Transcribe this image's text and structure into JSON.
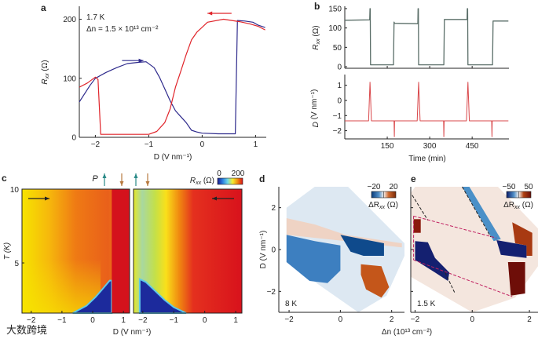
{
  "figure": {
    "watermark": "大数跨境"
  },
  "chart_data": [
    {
      "panel": "a",
      "type": "line",
      "title": "",
      "annotations": [
        "1.7 K",
        "Δn = 1.5 × 10¹³ cm⁻²"
      ],
      "xlabel": "D (V nm⁻¹)",
      "ylabel": {
        "main": "R",
        "sub": "xx",
        "unit": " (Ω)"
      },
      "xlim": [
        -2.3,
        1.2
      ],
      "ylim": [
        0,
        222
      ],
      "xticks": [
        -2,
        -1,
        0,
        1
      ],
      "xtick_labels": [
        "−2",
        "−1",
        "0",
        "1"
      ],
      "yticks": [
        0,
        100,
        200
      ],
      "ytick_labels": [
        "0",
        "100",
        "200"
      ],
      "series": [
        {
          "name": "forward sweep",
          "color": "#2e2a8c",
          "arrow": [
            -1.5,
            -1.1,
            130
          ],
          "x": [
            -2.3,
            -2.1,
            -2.0,
            -1.8,
            -1.6,
            -1.4,
            -1.2,
            -1.05,
            -0.9,
            -0.8,
            -0.7,
            -0.6,
            -0.5,
            -0.4,
            -0.3,
            -0.2,
            -0.1,
            0,
            0.3,
            0.62,
            0.66,
            0.8,
            0.95,
            1.05,
            1.18
          ],
          "y": [
            60,
            88,
            100,
            110,
            118,
            125,
            127,
            128,
            118,
            102,
            82,
            62,
            45,
            35,
            25,
            12,
            9,
            7,
            6,
            6,
            198,
            197,
            195,
            190,
            186
          ]
        },
        {
          "name": "backward sweep",
          "color": "#e0242a",
          "arrow": [
            0.55,
            0.1,
            210
          ],
          "x": [
            -2.3,
            -2.15,
            -2.0,
            -1.95,
            -1.9,
            -1.5,
            -1.0,
            -0.85,
            -0.7,
            -0.6,
            -0.5,
            -0.4,
            -0.3,
            -0.2,
            -0.1,
            0.1,
            0.4,
            0.7,
            0.9,
            1.05,
            1.18
          ],
          "y": [
            85,
            92,
            102,
            98,
            5,
            5,
            5,
            10,
            25,
            48,
            85,
            112,
            140,
            165,
            178,
            195,
            200,
            196,
            192,
            188,
            182
          ]
        }
      ]
    },
    {
      "panel": "b-top",
      "type": "line",
      "ylabel": {
        "main": "R",
        "sub": "xx",
        "unit": " (Ω)"
      },
      "xlim": [
        0,
        580
      ],
      "ylim": [
        0,
        156
      ],
      "xticks": [
        150,
        300,
        450
      ],
      "yticks": [
        0,
        50,
        100,
        150
      ],
      "ytick_labels": [
        "0",
        "50",
        "100",
        "150"
      ],
      "series": [
        {
          "name": "Rxx",
          "color": "#5a6e68",
          "x": [
            0,
            88,
            89,
            90,
            91,
            92,
            170,
            172,
            174,
            176,
            258,
            259,
            260,
            261,
            262,
            348,
            350,
            352,
            354,
            432,
            433,
            434,
            435,
            436,
            437,
            520,
            522,
            524,
            526,
            578
          ],
          "y": [
            120,
            121,
            150,
            150,
            5,
            5,
            5,
            5,
            115,
            112,
            111,
            150,
            150,
            5,
            5,
            5,
            5,
            122,
            122,
            122,
            150,
            150,
            5,
            5,
            5,
            5,
            5,
            118,
            118,
            118
          ]
        }
      ]
    },
    {
      "panel": "b-bottom",
      "type": "line",
      "xlabel": "Time (min)",
      "ylabel": {
        "main": "D",
        "sub": "",
        "unit": " (V nm⁻¹)"
      },
      "xlim": [
        0,
        580
      ],
      "ylim": [
        -2.54,
        1.71
      ],
      "xticks": [
        150,
        300,
        450
      ],
      "xtick_labels": [
        "150",
        "300",
        "450"
      ],
      "yticks": [
        -2,
        -1,
        0,
        1
      ],
      "ytick_labels": [
        "−2",
        "−1",
        "0",
        "1"
      ],
      "series": [
        {
          "name": "D",
          "color": "#d9474a",
          "x": [
            0,
            84,
            89,
            94,
            170,
            174,
            175,
            176,
            180,
            256,
            261,
            266,
            345,
            349,
            350,
            351,
            355,
            430,
            435,
            440,
            515,
            519,
            520,
            521,
            525,
            578
          ],
          "y": [
            -1.35,
            -1.35,
            1.2,
            -1.35,
            -1.35,
            -1.35,
            -2.4,
            -1.35,
            -1.35,
            -1.35,
            1.2,
            -1.35,
            -1.35,
            -1.35,
            -2.4,
            -1.35,
            -1.35,
            -1.35,
            1.2,
            -1.35,
            -1.35,
            -1.35,
            -2.4,
            -1.35,
            -1.35,
            -1.35
          ]
        }
      ]
    },
    {
      "panel": "c",
      "type": "heatmap",
      "xlabel": "D (V nm⁻¹)",
      "ylabel": "T (K)",
      "polarization_label": "P",
      "xlim": [
        -2.3,
        1.2
      ],
      "ylim": [
        1.6,
        10
      ],
      "xticks": [
        -2,
        -1,
        0,
        1
      ],
      "xtick_labels": [
        "−2",
        "−1",
        "0",
        "1"
      ],
      "yticks": [
        5,
        10
      ],
      "ytick_labels": [
        "5",
        "10"
      ],
      "colorbar": {
        "label_main": "R",
        "label_sub": "xx",
        "label_unit": " (Ω)",
        "min_label": "0",
        "max_label": "200",
        "colors": [
          "#1a1a8c",
          "#2a7de0",
          "#6fd8e8",
          "#f5ee30",
          "#f08a10",
          "#d8101a"
        ]
      },
      "left_sweep_direction": "right",
      "right_sweep_direction": "left",
      "left_regions": [
        {
          "name": "low-resistance",
          "color": "#1c2a9c",
          "points": [
            [
              -0.65,
              1.6
            ],
            [
              -0.2,
              2.1
            ],
            [
              0.1,
              2.7
            ],
            [
              0.35,
              3.3
            ],
            [
              0.55,
              3.8
            ],
            [
              0.62,
              3.8
            ],
            [
              0.62,
              1.6
            ]
          ]
        },
        {
          "name": "high-resistance",
          "color": "#d4121c",
          "points": [
            [
              0.62,
              1.6
            ],
            [
              0.62,
              10
            ],
            [
              1.2,
              10
            ],
            [
              1.2,
              1.6
            ]
          ]
        }
      ],
      "right_regions": [
        {
          "name": "low-resistance",
          "color": "#1c2a9c",
          "points": [
            [
              -2.1,
              1.6
            ],
            [
              -2.1,
              3.9
            ],
            [
              -1.9,
              3.7
            ],
            [
              -1.6,
              3.1
            ],
            [
              -1.3,
              2.5
            ],
            [
              -1.0,
              2.0
            ],
            [
              -0.6,
              1.6
            ]
          ]
        }
      ]
    },
    {
      "panel": "d",
      "type": "heatmap",
      "annotation": "8 K",
      "ylabel": "D (V nm⁻¹)",
      "xlim": [
        -2.4,
        2.5
      ],
      "ylim": [
        -3,
        3
      ],
      "xticks": [
        -2,
        0,
        2
      ],
      "xtick_labels": [
        "−2",
        "0",
        "2"
      ],
      "yticks": [
        -2,
        0,
        2
      ],
      "ytick_labels": [
        "−2",
        "0",
        "2"
      ],
      "colorbar": {
        "label_main": "ΔR",
        "label_sub": "xx",
        "label_unit": " (Ω)",
        "min_label": "−20",
        "max_label": "20",
        "colors": [
          "#0a3c7a",
          "#4f8fc8",
          "#f4f0ee",
          "#d06a30",
          "#7a2a08"
        ]
      },
      "regions": [
        {
          "name": "measured-area",
          "color": "#dde8f2",
          "points": [
            [
              -2.1,
              2.0
            ],
            [
              -2.1,
              -0.6
            ],
            [
              0.7,
              -3.0
            ],
            [
              1.8,
              -2.2
            ],
            [
              2.5,
              -0.3
            ],
            [
              2.5,
              0.3
            ],
            [
              0.3,
              3
            ],
            [
              -1.0,
              3
            ],
            [
              -2.1,
              2.0
            ]
          ]
        },
        {
          "name": "positive-band",
          "color": "#efd3c4",
          "points": [
            [
              -2.1,
              1.5
            ],
            [
              -1.0,
              1.2
            ],
            [
              0.2,
              0.7
            ],
            [
              2.4,
              0.3
            ],
            [
              2.4,
              0.1
            ],
            [
              0.2,
              0.4
            ],
            [
              -2.1,
              0.7
            ]
          ]
        },
        {
          "name": "negative-band",
          "color": "#3d7fc0",
          "points": [
            [
              -2.1,
              0.7
            ],
            [
              -1.0,
              0.4
            ],
            [
              0.0,
              0.2
            ],
            [
              0.0,
              -1.0
            ],
            [
              -0.5,
              -1.6
            ],
            [
              -1.2,
              -1.5
            ],
            [
              -2.1,
              -0.6
            ]
          ]
        },
        {
          "name": "negative-blob",
          "color": "#0f4a8c",
          "points": [
            [
              0.0,
              0.7
            ],
            [
              1.7,
              0.3
            ],
            [
              1.7,
              -0.3
            ],
            [
              0.9,
              -0.3
            ],
            [
              0.4,
              -0.1
            ]
          ]
        },
        {
          "name": "positive-blob",
          "color": "#c4561a",
          "points": [
            [
              0.8,
              -0.7
            ],
            [
              1.6,
              -0.8
            ],
            [
              1.9,
              -1.8
            ],
            [
              1.6,
              -2.3
            ],
            [
              1.0,
              -1.9
            ],
            [
              0.8,
              -1.2
            ]
          ]
        }
      ]
    },
    {
      "panel": "e",
      "type": "heatmap",
      "annotation": "1.5 K",
      "xlabel": "Δn (10¹³ cm⁻²)",
      "xlim": [
        -2.15,
        2.3
      ],
      "ylim": [
        -3,
        3
      ],
      "xticks": [
        -2,
        0,
        2
      ],
      "xtick_labels": [
        "−2",
        "0",
        "2"
      ],
      "yticks": [
        -2,
        0,
        2
      ],
      "colorbar": {
        "label_main": "ΔR",
        "label_sub": "xx",
        "label_unit": " (Ω)",
        "min_label": "−50",
        "max_label": "50",
        "colors": [
          "#0a1c6a",
          "#4f8fc8",
          "#f4f0ee",
          "#b04010",
          "#6a0e08"
        ]
      },
      "regions": [
        {
          "name": "measured-area",
          "color": "#f4e6de",
          "points": [
            [
              -2.15,
              2.7
            ],
            [
              -2.15,
              -1.3
            ],
            [
              0.0,
              -3
            ],
            [
              1.5,
              -2.3
            ],
            [
              2.3,
              -0.8
            ],
            [
              2.3,
              1.0
            ],
            [
              0.9,
              3
            ],
            [
              -2.0,
              3
            ]
          ]
        },
        {
          "name": "negative-stripe",
          "color": "#4a90c8",
          "points": [
            [
              -0.35,
              3
            ],
            [
              -0.1,
              3
            ],
            [
              1.0,
              0.5
            ],
            [
              0.75,
              0.4
            ]
          ]
        },
        {
          "name": "negative-blob-left",
          "color": "#142070",
          "points": [
            [
              -2.0,
              0.4
            ],
            [
              -1.55,
              0.35
            ],
            [
              -1.3,
              -0.4
            ],
            [
              -0.8,
              -1.1
            ],
            [
              -0.85,
              -1.5
            ],
            [
              -1.3,
              -1.1
            ],
            [
              -2.0,
              -0.5
            ]
          ]
        },
        {
          "name": "positive-blob-left",
          "color": "#8a1a0c",
          "points": [
            [
              -2.05,
              1.45
            ],
            [
              -1.8,
              1.45
            ],
            [
              -1.8,
              0.8
            ],
            [
              -2.05,
              0.8
            ]
          ]
        },
        {
          "name": "negative-blob-right",
          "color": "#142070",
          "points": [
            [
              0.85,
              0.45
            ],
            [
              1.9,
              0.2
            ],
            [
              1.9,
              -0.4
            ],
            [
              1.0,
              -0.25
            ]
          ]
        },
        {
          "name": "positive-blob-right-upper",
          "color": "#a83a12",
          "points": [
            [
              1.4,
              1.3
            ],
            [
              2.1,
              0.8
            ],
            [
              2.1,
              -0.3
            ],
            [
              1.9,
              -0.3
            ],
            [
              1.9,
              0.2
            ],
            [
              1.5,
              0.3
            ]
          ]
        },
        {
          "name": "positive-blob-right-lower",
          "color": "#6e0e08",
          "points": [
            [
              1.25,
              -0.6
            ],
            [
              1.85,
              -0.6
            ],
            [
              1.85,
              -2.1
            ],
            [
              1.35,
              -2.2
            ]
          ]
        }
      ],
      "dashed_lines": [
        {
          "color": "#222222",
          "points": [
            [
              -2.1,
              2.6
            ],
            [
              -1.55,
              1.4
            ]
          ]
        },
        {
          "color": "#222222",
          "points": [
            [
              -0.95,
              -1.1
            ],
            [
              -0.6,
              -2.1
            ]
          ]
        },
        {
          "color": "#222222",
          "points": [
            [
              -0.35,
              3.0
            ],
            [
              0.65,
              0.6
            ]
          ]
        },
        {
          "color": "#c02060",
          "points": [
            [
              -2.05,
              1.6
            ],
            [
              0.85,
              0.55
            ]
          ]
        },
        {
          "color": "#c02060",
          "points": [
            [
              -2.05,
              1.6
            ],
            [
              -2.05,
              -0.5
            ]
          ]
        },
        {
          "color": "#c02060",
          "points": [
            [
              -2.05,
              -0.5
            ],
            [
              1.4,
              -2.25
            ]
          ]
        }
      ]
    }
  ]
}
